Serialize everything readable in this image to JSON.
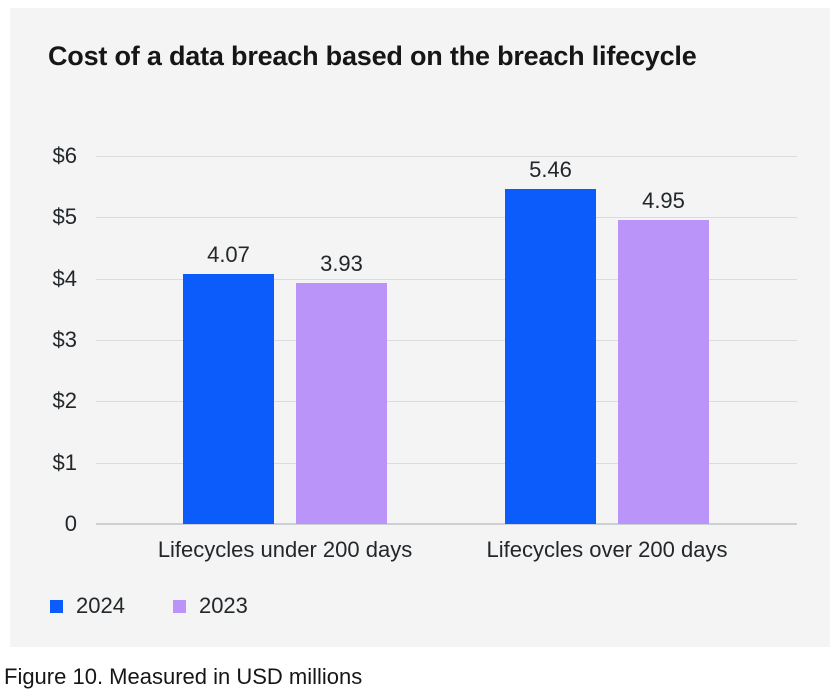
{
  "page": {
    "title": "Cost of a data breach based on the breach lifecycle",
    "caption": "Figure 10. Measured in USD millions"
  },
  "colors": {
    "card_background": "#f4f4f4",
    "page_background": "#ffffff",
    "gridline": "#d9dbde",
    "baseline": "#ccd0d5",
    "title_text": "#161616",
    "axis_text": "#21272a",
    "series_2024": "#0b5cfa",
    "series_2023": "#ba94f9"
  },
  "chart_data": {
    "type": "bar",
    "title": "Cost of a data breach based on the breach lifecycle",
    "categories": [
      "Lifecycles under 200 days",
      "Lifecycles over 200 days"
    ],
    "series": [
      {
        "name": "2024",
        "color": "#0b5cfa",
        "values": [
          4.07,
          5.46
        ],
        "labels": [
          "4.07",
          "5.46"
        ]
      },
      {
        "name": "2023",
        "color": "#ba94f9",
        "values": [
          3.93,
          4.95
        ],
        "labels": [
          "3.93",
          "4.95"
        ]
      }
    ],
    "xlabel": "",
    "ylabel": "",
    "ylim": [
      0,
      6
    ],
    "ytick_labels": [
      "$6",
      "$5",
      "$4",
      "$3",
      "$2",
      "$1",
      "0"
    ],
    "grid": "horizontal",
    "legend_position": "bottom-left",
    "units": "USD millions",
    "caption": "Figure 10. Measured in USD millions"
  }
}
